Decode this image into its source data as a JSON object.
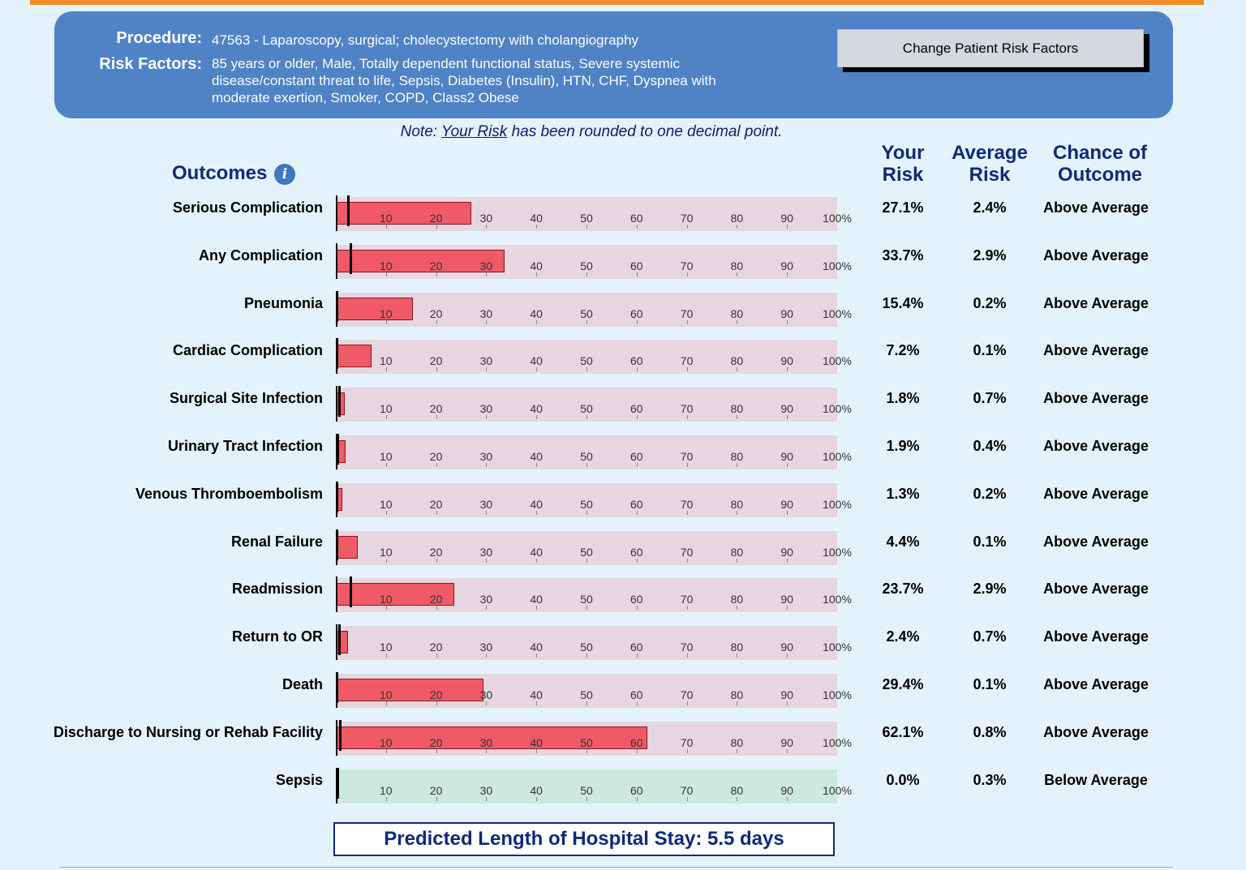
{
  "header": {
    "procedure_label": "Procedure:",
    "procedure_value": "47563 - Laparoscopy, surgical; cholecystectomy with cholangiography",
    "risk_factors_label": "Risk Factors:",
    "risk_factors_line1": "85 years or older, Male, Totally dependent functional status, Severe systemic",
    "risk_factors_line2": "disease/constant threat to life, Sepsis, Diabetes (Insulin), HTN, CHF, Dyspnea with",
    "risk_factors_line3": "moderate exertion, Smoker, COPD, Class2 Obese",
    "change_button": "Change Patient Risk Factors"
  },
  "note": {
    "prefix": "Note: ",
    "link": "Your Risk",
    "suffix": " has been rounded to one decimal point."
  },
  "outcomes_title": "Outcomes",
  "columns": {
    "your_risk_1": "Your",
    "your_risk_2": "Risk",
    "avg_risk_1": "Average",
    "avg_risk_2": "Risk",
    "chance_1": "Chance of",
    "chance_2": "Outcome"
  },
  "length_of_stay": "Predicted Length of Hospital Stay: 5.5 days",
  "colors": {
    "bar": "#ef5a66",
    "above_track": "#e7d6df",
    "below_track": "#cde8de",
    "accent": "#0f2a7a"
  },
  "chart_data": {
    "type": "bar",
    "orientation": "horizontal",
    "xlim": [
      0,
      100
    ],
    "tick_labels": [
      "10",
      "20",
      "30",
      "40",
      "50",
      "60",
      "70",
      "80",
      "90",
      "100%"
    ],
    "categories": [
      "Serious Complication",
      "Any Complication",
      "Pneumonia",
      "Cardiac Complication",
      "Surgical Site Infection",
      "Urinary Tract Infection",
      "Venous Thromboembolism",
      "Renal Failure",
      "Readmission",
      "Return to OR",
      "Death",
      "Discharge to Nursing or Rehab Facility",
      "Sepsis"
    ],
    "series": [
      {
        "name": "Your Risk",
        "values": [
          27.1,
          33.7,
          15.4,
          7.2,
          1.8,
          1.9,
          1.3,
          4.4,
          23.7,
          2.4,
          29.4,
          62.1,
          0.0
        ]
      },
      {
        "name": "Average Risk",
        "values": [
          2.4,
          2.9,
          0.2,
          0.1,
          0.7,
          0.4,
          0.2,
          0.1,
          2.9,
          0.7,
          0.1,
          0.8,
          0.3
        ]
      }
    ],
    "rows": [
      {
        "label": "Serious Complication",
        "your_risk": "27.1%",
        "avg_risk": "2.4%",
        "chance": "Above Average"
      },
      {
        "label": "Any Complication",
        "your_risk": "33.7%",
        "avg_risk": "2.9%",
        "chance": "Above Average"
      },
      {
        "label": "Pneumonia",
        "your_risk": "15.4%",
        "avg_risk": "0.2%",
        "chance": "Above Average"
      },
      {
        "label": "Cardiac Complication",
        "your_risk": "7.2%",
        "avg_risk": "0.1%",
        "chance": "Above Average"
      },
      {
        "label": "Surgical Site Infection",
        "your_risk": "1.8%",
        "avg_risk": "0.7%",
        "chance": "Above Average"
      },
      {
        "label": "Urinary Tract Infection",
        "your_risk": "1.9%",
        "avg_risk": "0.4%",
        "chance": "Above Average"
      },
      {
        "label": "Venous Thromboembolism",
        "your_risk": "1.3%",
        "avg_risk": "0.2%",
        "chance": "Above Average"
      },
      {
        "label": "Renal Failure",
        "your_risk": "4.4%",
        "avg_risk": "0.1%",
        "chance": "Above Average"
      },
      {
        "label": "Readmission",
        "your_risk": "23.7%",
        "avg_risk": "2.9%",
        "chance": "Above Average"
      },
      {
        "label": "Return to OR",
        "your_risk": "2.4%",
        "avg_risk": "0.7%",
        "chance": "Above Average"
      },
      {
        "label": "Death",
        "your_risk": "29.4%",
        "avg_risk": "0.1%",
        "chance": "Above Average"
      },
      {
        "label": "Discharge to Nursing or Rehab Facility",
        "your_risk": "62.1%",
        "avg_risk": "0.8%",
        "chance": "Above Average"
      },
      {
        "label": "Sepsis",
        "your_risk": "0.0%",
        "avg_risk": "0.3%",
        "chance": "Below Average"
      }
    ]
  }
}
